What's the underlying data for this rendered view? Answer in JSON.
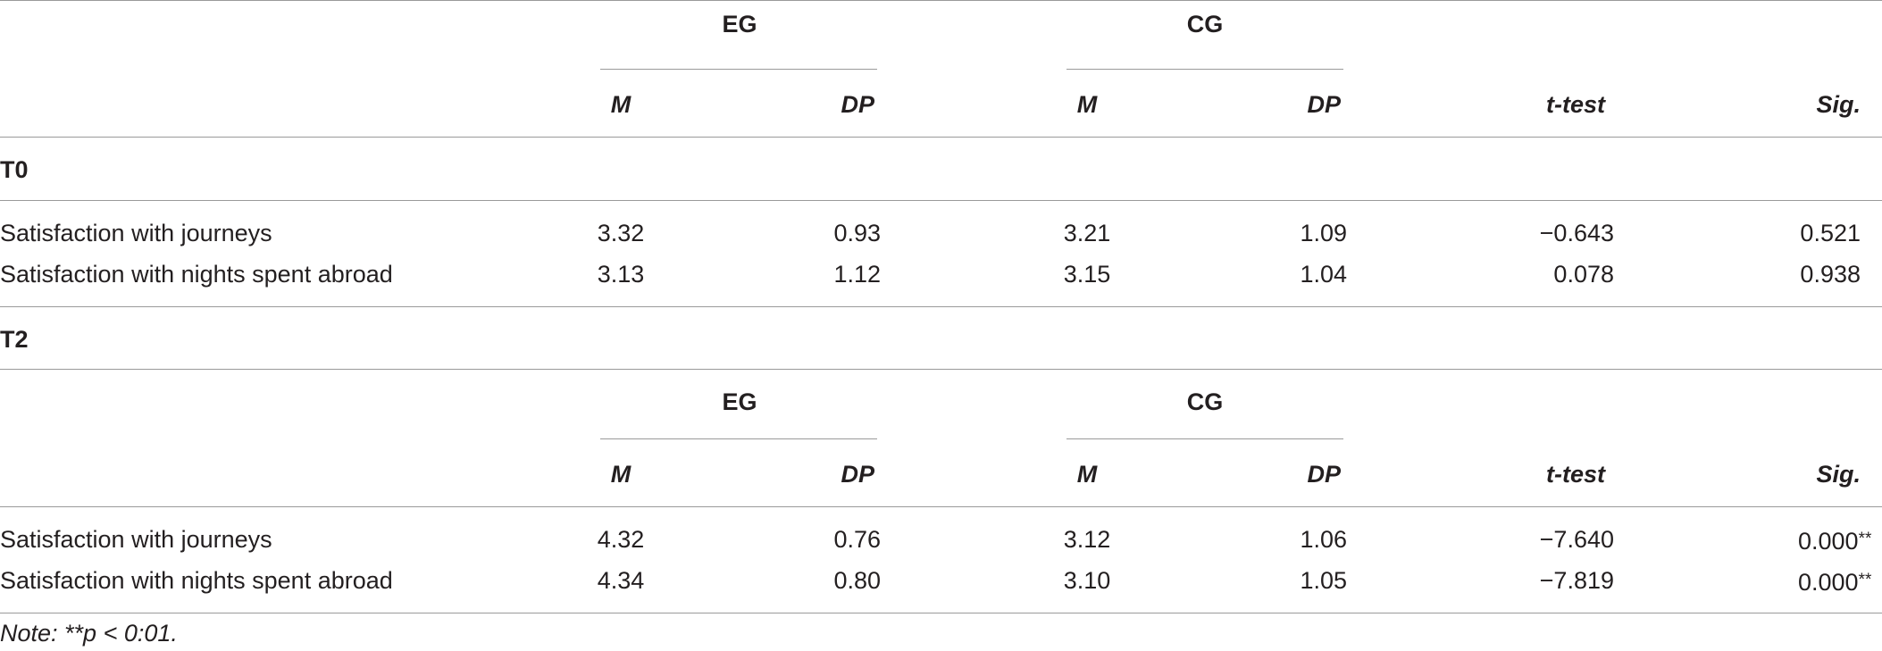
{
  "header": {
    "groups": [
      "EG",
      "CG"
    ],
    "columns": [
      "M",
      "DP",
      "M",
      "DP",
      "t-test",
      "Sig."
    ]
  },
  "sections": [
    {
      "label": "T0",
      "show_header": false,
      "rows": [
        {
          "label": "Satisfaction with journeys",
          "values": [
            "3.32",
            "0.93",
            "3.21",
            "1.09",
            "−0.643",
            "0.521"
          ]
        },
        {
          "label": "Satisfaction with nights spent abroad",
          "values": [
            "3.13",
            "1.12",
            "3.15",
            "1.04",
            "0.078",
            "0.938"
          ]
        }
      ]
    },
    {
      "label": "T2",
      "show_header": true,
      "rows": [
        {
          "label": "Satisfaction with journeys",
          "values": [
            "4.32",
            "0.76",
            "3.12",
            "1.06",
            "−7.640",
            "0.000"
          ],
          "sig_marker": "**"
        },
        {
          "label": "Satisfaction with nights spent abroad",
          "values": [
            "4.34",
            "0.80",
            "3.10",
            "1.05",
            "−7.819",
            "0.000"
          ],
          "sig_marker": "**"
        }
      ]
    }
  ],
  "note": "Note: **p < 0:01."
}
